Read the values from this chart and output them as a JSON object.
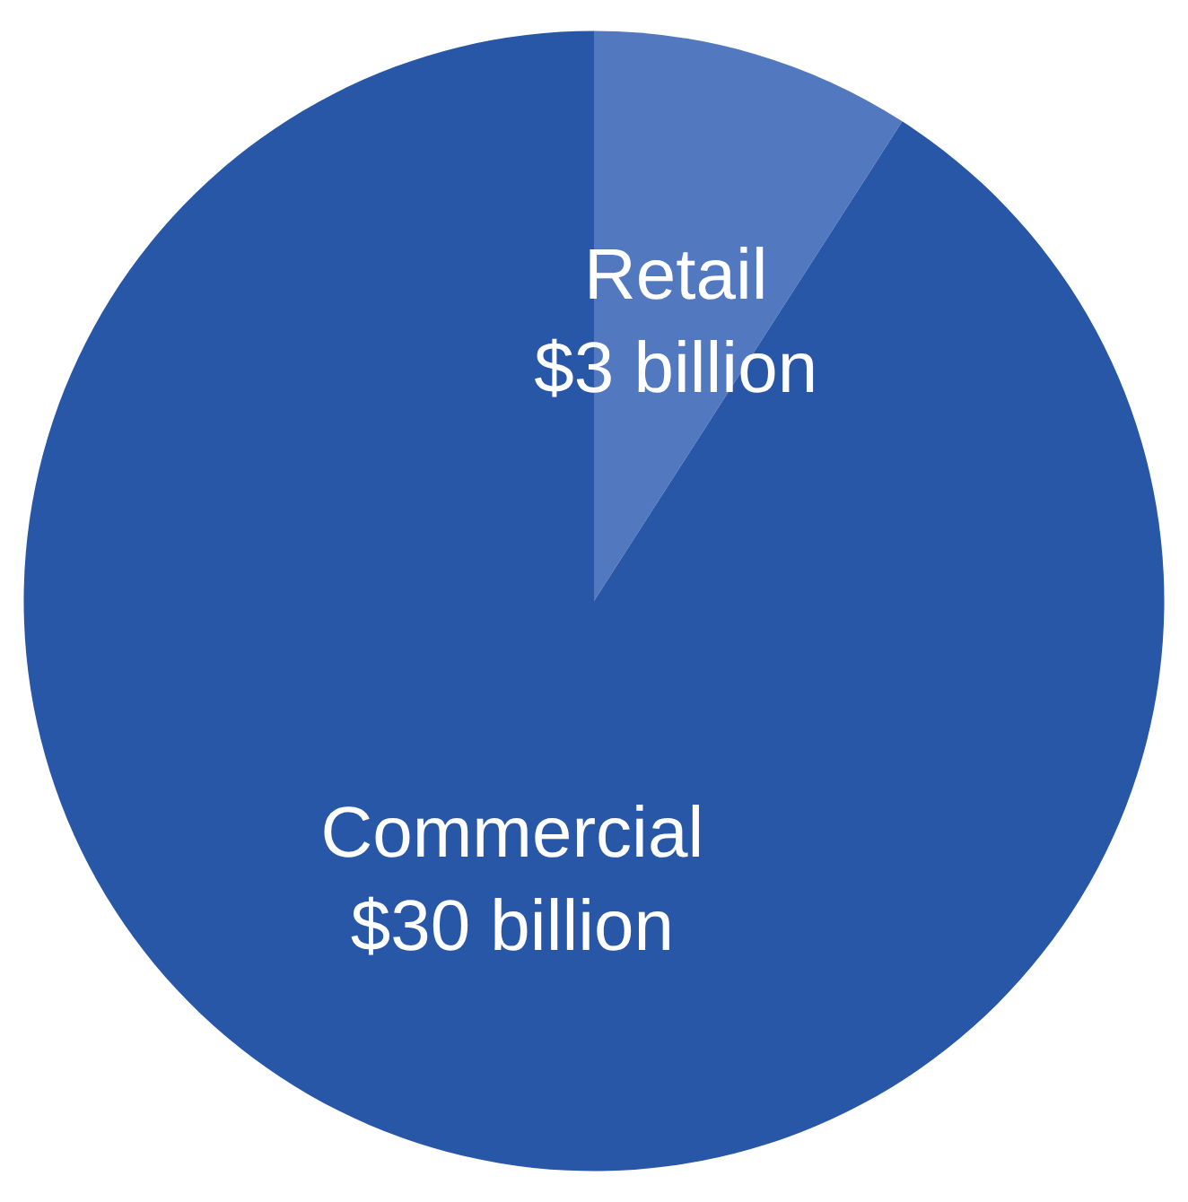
{
  "chart_data": {
    "type": "pie",
    "categories": [
      "Retail",
      "Commercial"
    ],
    "values": [
      3,
      30
    ],
    "value_labels": [
      "$3 billion",
      "$30 billion"
    ],
    "colors": [
      "#5278c0",
      "#2857a8"
    ]
  }
}
